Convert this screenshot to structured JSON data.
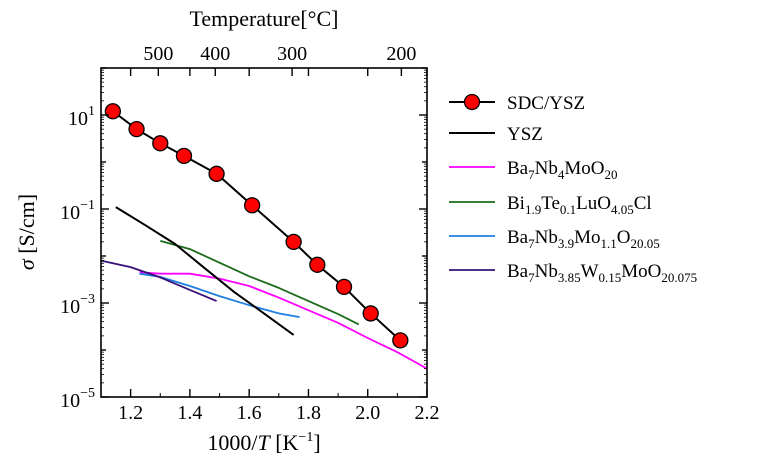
{
  "chart_data": {
    "type": "line",
    "xlabel": "1000/T [K⁻¹]",
    "x_axis_label": {
      "prefix": "1000/",
      "var": "T",
      "unit_open": " [K",
      "exp": "−1",
      "unit_close": "]"
    },
    "ylabel": "σ [S/cm]",
    "y_axis_label": {
      "var": "σ",
      "unit": " [S/cm]"
    },
    "top_xlabel": "Temperature[°C]",
    "xlim": [
      1.1,
      2.2
    ],
    "ylim_log10": [
      -5,
      2
    ],
    "y_scale": "log",
    "x_ticks": [
      {
        "value": 1.2,
        "label": "1.2"
      },
      {
        "value": 1.4,
        "label": "1.4"
      },
      {
        "value": 1.6,
        "label": "1.6"
      },
      {
        "value": 1.8,
        "label": "1.8"
      },
      {
        "value": 2.0,
        "label": "2.0"
      },
      {
        "value": 2.2,
        "label": "2.2"
      }
    ],
    "y_ticks": [
      {
        "log10": 1,
        "base": "10",
        "exp": "1"
      },
      {
        "log10": -1,
        "base": "10",
        "exp": "−1"
      },
      {
        "log10": -3,
        "base": "10",
        "exp": "−3"
      },
      {
        "log10": -5,
        "base": "10",
        "exp": "−5"
      }
    ],
    "top_ticks": [
      {
        "celsius": 500,
        "label": "500"
      },
      {
        "celsius": 400,
        "label": "400"
      },
      {
        "celsius": 300,
        "label": "300"
      },
      {
        "celsius": 200,
        "label": "200"
      }
    ],
    "legend_position": "right",
    "series": [
      {
        "name": "SDC/YSZ",
        "label_parts": [
          [
            "SDC/YSZ",
            "n"
          ]
        ],
        "color": "#000000",
        "marker": "circle",
        "marker_color": "#ff0000",
        "x": [
          1.14,
          1.22,
          1.3,
          1.38,
          1.49,
          1.61,
          1.75,
          1.83,
          1.92,
          2.01,
          2.11
        ],
        "y": [
          12,
          5,
          2.5,
          1.35,
          0.56,
          0.12,
          0.02,
          0.0065,
          0.0022,
          0.0006,
          0.00016
        ]
      },
      {
        "name": "YSZ",
        "label_parts": [
          [
            "YSZ",
            "n"
          ]
        ],
        "color": "#000000",
        "x": [
          1.15,
          1.25,
          1.35,
          1.45,
          1.55,
          1.65,
          1.75
        ],
        "y": [
          0.11,
          0.045,
          0.018,
          0.0055,
          0.0017,
          0.0006,
          0.00021
        ]
      },
      {
        "name": "Ba7Nb4MoO20",
        "label_parts": [
          [
            "Ba",
            "n"
          ],
          [
            "7",
            "sub"
          ],
          [
            "Nb",
            "n"
          ],
          [
            "4",
            "sub"
          ],
          [
            "MoO",
            "n"
          ],
          [
            "20",
            "sub"
          ]
        ],
        "color": "#ff00ff",
        "x": [
          1.23,
          1.3,
          1.4,
          1.5,
          1.6,
          1.7,
          1.8,
          1.9,
          2.0,
          2.1,
          2.15,
          2.2
        ],
        "y": [
          0.0045,
          0.0042,
          0.0042,
          0.0033,
          0.0023,
          0.0013,
          0.0007,
          0.00038,
          0.00018,
          9e-05,
          6e-05,
          4e-05
        ]
      },
      {
        "name": "Bi1.9Te0.1LuO4.05Cl",
        "label_parts": [
          [
            "Bi",
            "n"
          ],
          [
            "1.9",
            "sub"
          ],
          [
            "Te",
            "n"
          ],
          [
            "0.1",
            "sub"
          ],
          [
            "LuO",
            "n"
          ],
          [
            "4.05",
            "sub"
          ],
          [
            "Cl",
            "n"
          ]
        ],
        "color": "#1a6b1a",
        "x": [
          1.3,
          1.4,
          1.5,
          1.6,
          1.7,
          1.8,
          1.9,
          1.97
        ],
        "y": [
          0.021,
          0.014,
          0.0072,
          0.0037,
          0.0021,
          0.0011,
          0.00058,
          0.00035
        ]
      },
      {
        "name": "Ba7Nb3.9Mo1.1O20.05",
        "label_parts": [
          [
            "Ba",
            "n"
          ],
          [
            "7",
            "sub"
          ],
          [
            "Nb",
            "n"
          ],
          [
            "3.9",
            "sub"
          ],
          [
            "Mo",
            "n"
          ],
          [
            "1.1",
            "sub"
          ],
          [
            "O",
            "n"
          ],
          [
            "20.05",
            "sub"
          ]
        ],
        "color": "#1e7fe0",
        "x": [
          1.23,
          1.3,
          1.4,
          1.5,
          1.6,
          1.7,
          1.77
        ],
        "y": [
          0.0042,
          0.0036,
          0.0023,
          0.0014,
          0.0009,
          0.0006,
          0.0005
        ]
      },
      {
        "name": "Ba7Nb3.85W0.15MoO20.075",
        "label_parts": [
          [
            "Ba",
            "n"
          ],
          [
            "7",
            "sub"
          ],
          [
            "Nb",
            "n"
          ],
          [
            "3.85",
            "sub"
          ],
          [
            "W",
            "n"
          ],
          [
            "0.15",
            "sub"
          ],
          [
            "MoO",
            "n"
          ],
          [
            "20.075",
            "sub"
          ]
        ],
        "color": "#3a1278",
        "x": [
          1.1,
          1.2,
          1.3,
          1.4,
          1.49
        ],
        "y": [
          0.008,
          0.0058,
          0.0035,
          0.0019,
          0.0011
        ]
      }
    ]
  }
}
